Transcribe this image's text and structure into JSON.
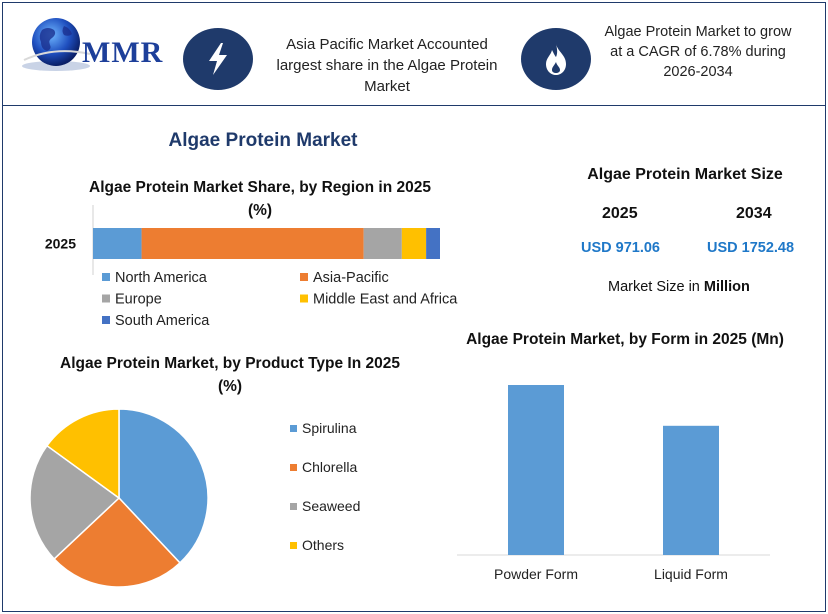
{
  "header": {
    "logo_text": "MMR",
    "left_callout": "Asia Pacific Market Accounted largest share in the Algae Protein Market",
    "right_callout": "Algae Protein Market to grow at a CAGR of 6.78% during 2026-2034",
    "left_icon": "lightning-icon",
    "right_icon": "flame-icon"
  },
  "main_title": "Algae Protein Market",
  "market_size": {
    "title": "Algae Protein Market Size",
    "year_a": "2025",
    "year_b": "2034",
    "value_a": "USD 971.06",
    "value_b": "USD 1752.48",
    "note_prefix": "Market Size in ",
    "note_bold": "Million"
  },
  "colors": {
    "navy": "#1f3a6b",
    "blue": "#5b9bd5",
    "orange": "#ed7d31",
    "gray": "#a5a5a5",
    "yellow": "#ffc000",
    "darkblue": "#4472c4"
  },
  "chart_data": [
    {
      "type": "bar",
      "orientation": "horizontal-stacked",
      "title": "Algae Protein Market Share, by Region in 2025 (%)",
      "categories": [
        "2025"
      ],
      "series": [
        {
          "name": "North America",
          "values": [
            14
          ]
        },
        {
          "name": "Asia-Pacific",
          "values": [
            64
          ]
        },
        {
          "name": "Europe",
          "values": [
            11
          ]
        },
        {
          "name": "Middle East and Africa",
          "values": [
            7
          ]
        },
        {
          "name": "South America",
          "values": [
            4
          ]
        }
      ],
      "xlim": [
        0,
        100
      ],
      "legend": "bottom"
    },
    {
      "type": "pie",
      "title": "Algae Protein Market, by Product Type In 2025 (%)",
      "categories": [
        "Spirulina",
        "Chlorella",
        "Seaweed",
        "Others"
      ],
      "values": [
        38,
        25,
        22,
        15
      ],
      "legend": "right"
    },
    {
      "type": "bar",
      "title": "Algae Protein Market, by Form in 2025 (Mn)",
      "categories": [
        "Powder Form",
        "Liquid Form"
      ],
      "values": [
        100,
        76
      ],
      "grid": false
    }
  ]
}
